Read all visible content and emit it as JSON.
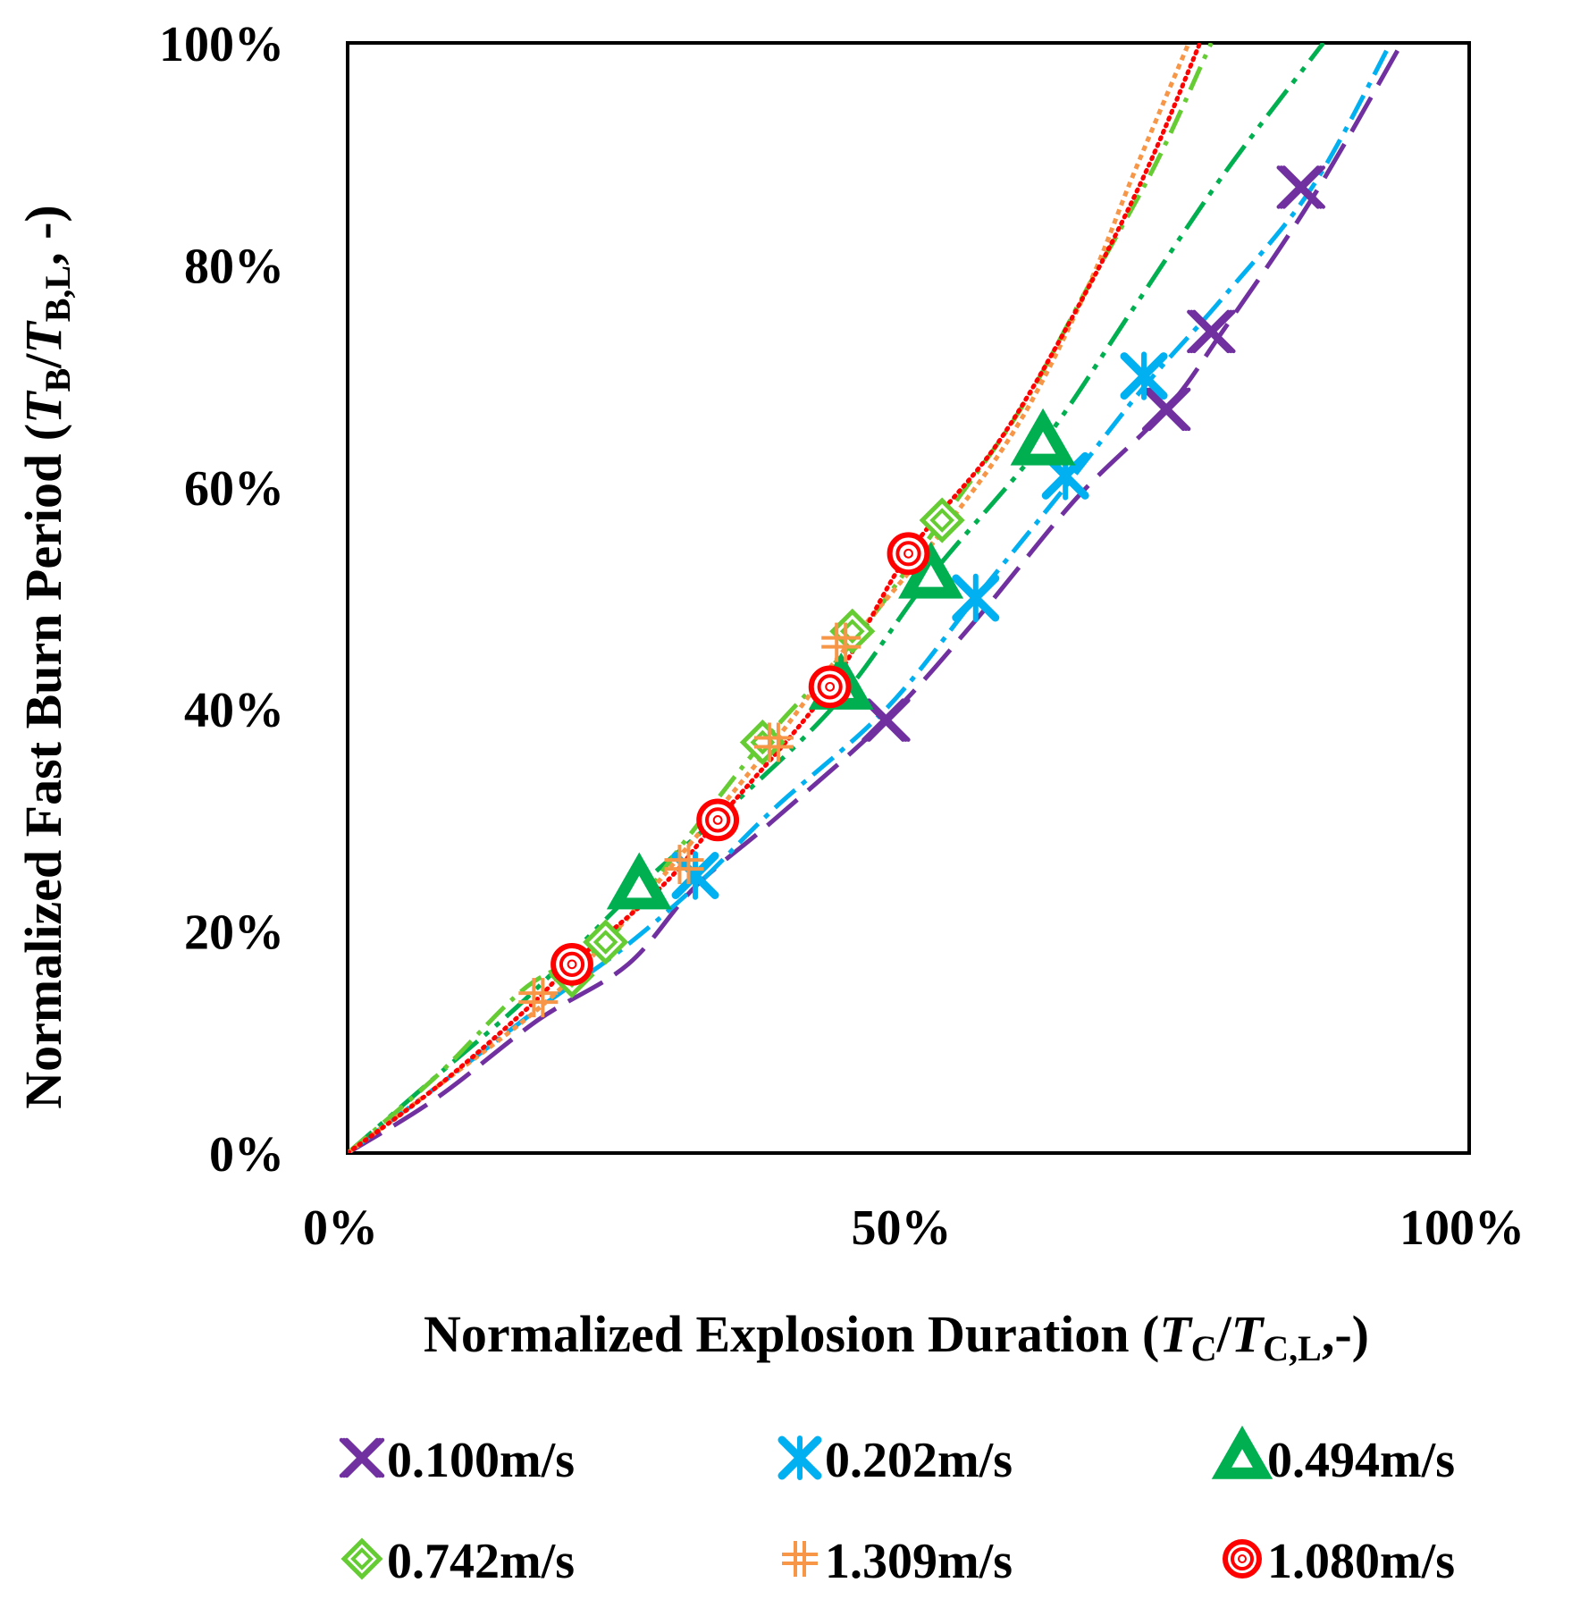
{
  "chart_data": {
    "type": "line",
    "title": "",
    "xlabel": {
      "prefix": "Normalized Explosion Duration (",
      "var": "T",
      "sub1": "C",
      "mid": "/",
      "var2": "T",
      "sub2": "C,L",
      "suffix": ",-)"
    },
    "ylabel": {
      "prefix": "Normalized Fast Burn Period (",
      "var": "T",
      "sub1": "B",
      "mid": "/",
      "var2": "T",
      "sub2": "B,L",
      "suffix": ", -)"
    },
    "xlim": [
      0,
      100
    ],
    "ylim": [
      0,
      100
    ],
    "x_ticks": [
      {
        "value": 0,
        "label": "0%"
      },
      {
        "value": 50,
        "label": "50%"
      },
      {
        "value": 100,
        "label": "100%"
      }
    ],
    "y_ticks": [
      {
        "value": 0,
        "label": "0%"
      },
      {
        "value": 20,
        "label": "20%"
      },
      {
        "value": 40,
        "label": "40%"
      },
      {
        "value": 60,
        "label": "60%"
      },
      {
        "value": 80,
        "label": "80%"
      },
      {
        "value": 100,
        "label": "100%"
      }
    ],
    "grid": false,
    "legend_position": "bottom",
    "series": [
      {
        "name": "0.100m/s",
        "marker": "x",
        "color": "#7030A0",
        "dash": "44,16",
        "points": [
          [
            0,
            0
          ],
          [
            8,
            5
          ],
          [
            17,
            12
          ],
          [
            25,
            17
          ],
          [
            31,
            24
          ],
          [
            38,
            30
          ],
          [
            48,
            39
          ],
          [
            56,
            48
          ],
          [
            65,
            59
          ],
          [
            73,
            67
          ],
          [
            78,
            74
          ],
          [
            86,
            86
          ],
          [
            94,
            100
          ]
        ],
        "markers": [
          [
            48,
            39
          ],
          [
            73,
            67
          ],
          [
            77,
            74
          ],
          [
            85,
            87
          ]
        ]
      },
      {
        "name": "0.202m/s",
        "marker": "asterisk",
        "color": "#00B0F0",
        "dash": "30,10,6,10",
        "points": [
          [
            0,
            0
          ],
          [
            8,
            6
          ],
          [
            17,
            13
          ],
          [
            24,
            18
          ],
          [
            31,
            24
          ],
          [
            38,
            31
          ],
          [
            48,
            40
          ],
          [
            56,
            50
          ],
          [
            64,
            60
          ],
          [
            71,
            69
          ],
          [
            78,
            77
          ],
          [
            86,
            87
          ],
          [
            93,
            100
          ]
        ],
        "markers": [
          [
            31,
            25
          ],
          [
            56,
            50
          ],
          [
            64,
            61
          ],
          [
            71,
            70
          ]
        ]
      },
      {
        "name": "0.494m/s",
        "marker": "triangle",
        "color": "#00B050",
        "dash": "36,10,6,10,6,10",
        "points": [
          [
            0,
            0
          ],
          [
            8,
            7
          ],
          [
            16,
            14
          ],
          [
            26,
            24
          ],
          [
            35,
            32
          ],
          [
            44,
            41
          ],
          [
            52,
            52
          ],
          [
            62,
            64
          ],
          [
            70,
            76
          ],
          [
            78,
            88
          ],
          [
            87,
            100
          ]
        ],
        "markers": [
          [
            26,
            24
          ],
          [
            44,
            42
          ],
          [
            52,
            52
          ],
          [
            62,
            64
          ]
        ]
      },
      {
        "name": "0.742m/s",
        "marker": "diamond",
        "color": "#66CC33",
        "dash": "28,10,5,10",
        "points": [
          [
            0,
            0
          ],
          [
            8,
            7
          ],
          [
            16,
            15
          ],
          [
            23,
            19
          ],
          [
            30,
            28
          ],
          [
            37,
            37
          ],
          [
            45,
            46
          ],
          [
            53,
            57
          ],
          [
            60,
            67
          ],
          [
            66,
            78
          ],
          [
            72,
            89
          ],
          [
            77,
            100
          ]
        ],
        "markers": [
          [
            20,
            16
          ],
          [
            23,
            19
          ],
          [
            37,
            37
          ],
          [
            45,
            47
          ],
          [
            53,
            57
          ]
        ]
      },
      {
        "name": "1.309m/s",
        "marker": "plus",
        "color": "#F79646",
        "dash": "6,5",
        "points": [
          [
            0,
            0
          ],
          [
            8,
            6
          ],
          [
            17,
            13
          ],
          [
            23,
            19
          ],
          [
            29,
            26
          ],
          [
            38,
            37
          ],
          [
            44,
            45
          ],
          [
            53,
            56
          ],
          [
            60,
            66
          ],
          [
            66,
            78
          ],
          [
            70,
            88
          ],
          [
            75,
            100
          ]
        ],
        "markers": [
          [
            17,
            14
          ],
          [
            30,
            26
          ],
          [
            38,
            37
          ],
          [
            44,
            46
          ]
        ]
      },
      {
        "name": "1.080m/s",
        "marker": "circle",
        "color": "#FF0000",
        "dash": "2,6",
        "points": [
          [
            0,
            0
          ],
          [
            8,
            6
          ],
          [
            16,
            13
          ],
          [
            20,
            17
          ],
          [
            28,
            24
          ],
          [
            33,
            30
          ],
          [
            43,
            42
          ],
          [
            50,
            54
          ],
          [
            58,
            64
          ],
          [
            65,
            76
          ],
          [
            71,
            88
          ],
          [
            76,
            100
          ]
        ],
        "markers": [
          [
            20,
            17
          ],
          [
            33,
            30
          ],
          [
            43,
            42
          ],
          [
            50,
            54
          ]
        ]
      }
    ]
  }
}
